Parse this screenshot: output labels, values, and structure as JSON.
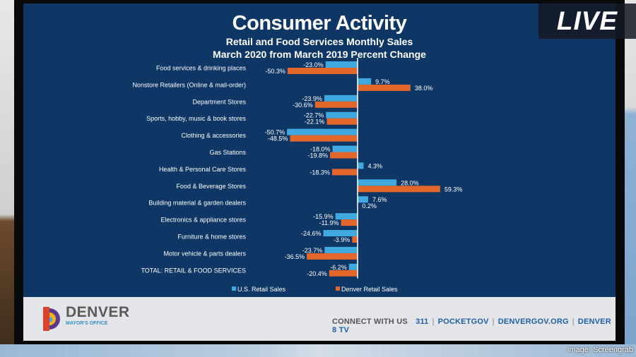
{
  "slide": {
    "title": "Consumer Activity",
    "subtitle1": "Retail and Food Services Monthly Sales",
    "subtitle2": "March 2020 from March 2019 Percent Change"
  },
  "live_badge": "LIVE",
  "credit": "Image: Screengrab",
  "footer": {
    "logo_name": "DENVER",
    "logo_sub": "MAYOR'S OFFICE",
    "connect_label": "CONNECT WITH US",
    "links": [
      "311",
      "POCKETGOV",
      "DENVERGOV.ORG",
      "DENVER 8 TV"
    ]
  },
  "chart_data": {
    "type": "bar",
    "orientation": "horizontal",
    "title": "Retail and Food Services Monthly Sales March 2020 from March 2019 Percent Change",
    "categories": [
      "Food services & drinking places",
      "Nonstore Retailers (Online & mail-order)",
      "Department Stores",
      "Sports, hobby, music & book stores",
      "Clothing & accessories",
      "Gas Stations",
      "Health & Personal Care Stores",
      "Food & Beverage Stores",
      "Building material & garden dealers",
      "Electronics & appliance stores",
      "Furniture & home stores",
      "Motor vehicle & parts dealers",
      "TOTAL: RETAIL & FOOD SERVICES"
    ],
    "series": [
      {
        "name": "U.S. Retail Sales",
        "color": "#3fa9e0",
        "values": [
          -23.0,
          9.7,
          -23.9,
          -22.7,
          -50.7,
          -18.0,
          4.3,
          28.0,
          7.6,
          -15.9,
          -24.6,
          -23.7,
          -6.2
        ]
      },
      {
        "name": "Denver Retail Sales",
        "color": "#e3662a",
        "values": [
          -50.3,
          38.0,
          -30.6,
          -22.1,
          -48.5,
          -19.8,
          -18.3,
          59.3,
          0.2,
          -11.9,
          -3.9,
          -36.5,
          -20.4
        ]
      }
    ],
    "value_suffix": "%",
    "legend": "bottom",
    "grid": false
  }
}
